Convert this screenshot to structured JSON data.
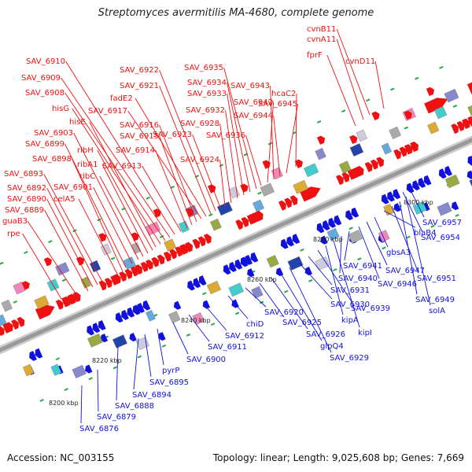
{
  "title": "Streptomyces avermitilis MA-4680, complete genome",
  "footer": {
    "accession": "Accession: NC_003155",
    "summary": "Topology: linear; Length: 9,025,608 bp; Genes: 7,669"
  },
  "colors": {
    "forward_strand": "#ee1111",
    "reverse_strand": "#1111dd",
    "backbone": "#999999",
    "tick": "#22aa44"
  },
  "scale_labels": [
    "8200 kbp",
    "8220 kbp",
    "8240 kbp",
    "8260 kbp",
    "8280 kbp",
    "8300 kbp"
  ],
  "forward_labels": [
    "rpe",
    "guaB3",
    "SAV_6889",
    "SAV_6890",
    "SAV_6892",
    "SAV_6893",
    "celA5",
    "SAV_6898",
    "SAV_6899",
    "SAV_6901",
    "SAV_6903",
    "ribC",
    "ribA1",
    "ribH",
    "hisE",
    "hisG",
    "SAV_6908",
    "SAV_6909",
    "SAV_6910",
    "SAV_6913",
    "SAV_6914",
    "SAV_6915",
    "SAV_6916",
    "SAV_6917",
    "fadE2",
    "SAV_6921",
    "SAV_6922",
    "SAV_6923",
    "SAV_6924",
    "SAV_6928",
    "SAV_6932",
    "SAV_6933",
    "SAV_6934",
    "SAV_6935",
    "SAV_6936",
    "SAV_6942",
    "SAV_6943",
    "SAV_6944",
    "SAV_6945",
    "hcaC2",
    "fprF",
    "cvnA11",
    "cvnB11",
    "cvnD11"
  ],
  "reverse_labels": [
    "SAV_6876",
    "SAV_6879",
    "SAV_6888",
    "SAV_6894",
    "SAV_6895",
    "pyrP",
    "SAV_6900",
    "SAV_6911",
    "SAV_6912",
    "chiD",
    "SAV_6920",
    "SAV_6925",
    "SAV_6926",
    "glpQ4",
    "SAV_6929",
    "SAV_6930",
    "SAV_6931",
    "SAV_6939",
    "kipA",
    "kipI",
    "SAV_6940",
    "SAV_6941",
    "SAV_6946",
    "SAV_6947",
    "gbsA3",
    "blaB4",
    "SAV_6951",
    "SAV_6949",
    "solA",
    "SAV_6954",
    "SAV_6957"
  ]
}
